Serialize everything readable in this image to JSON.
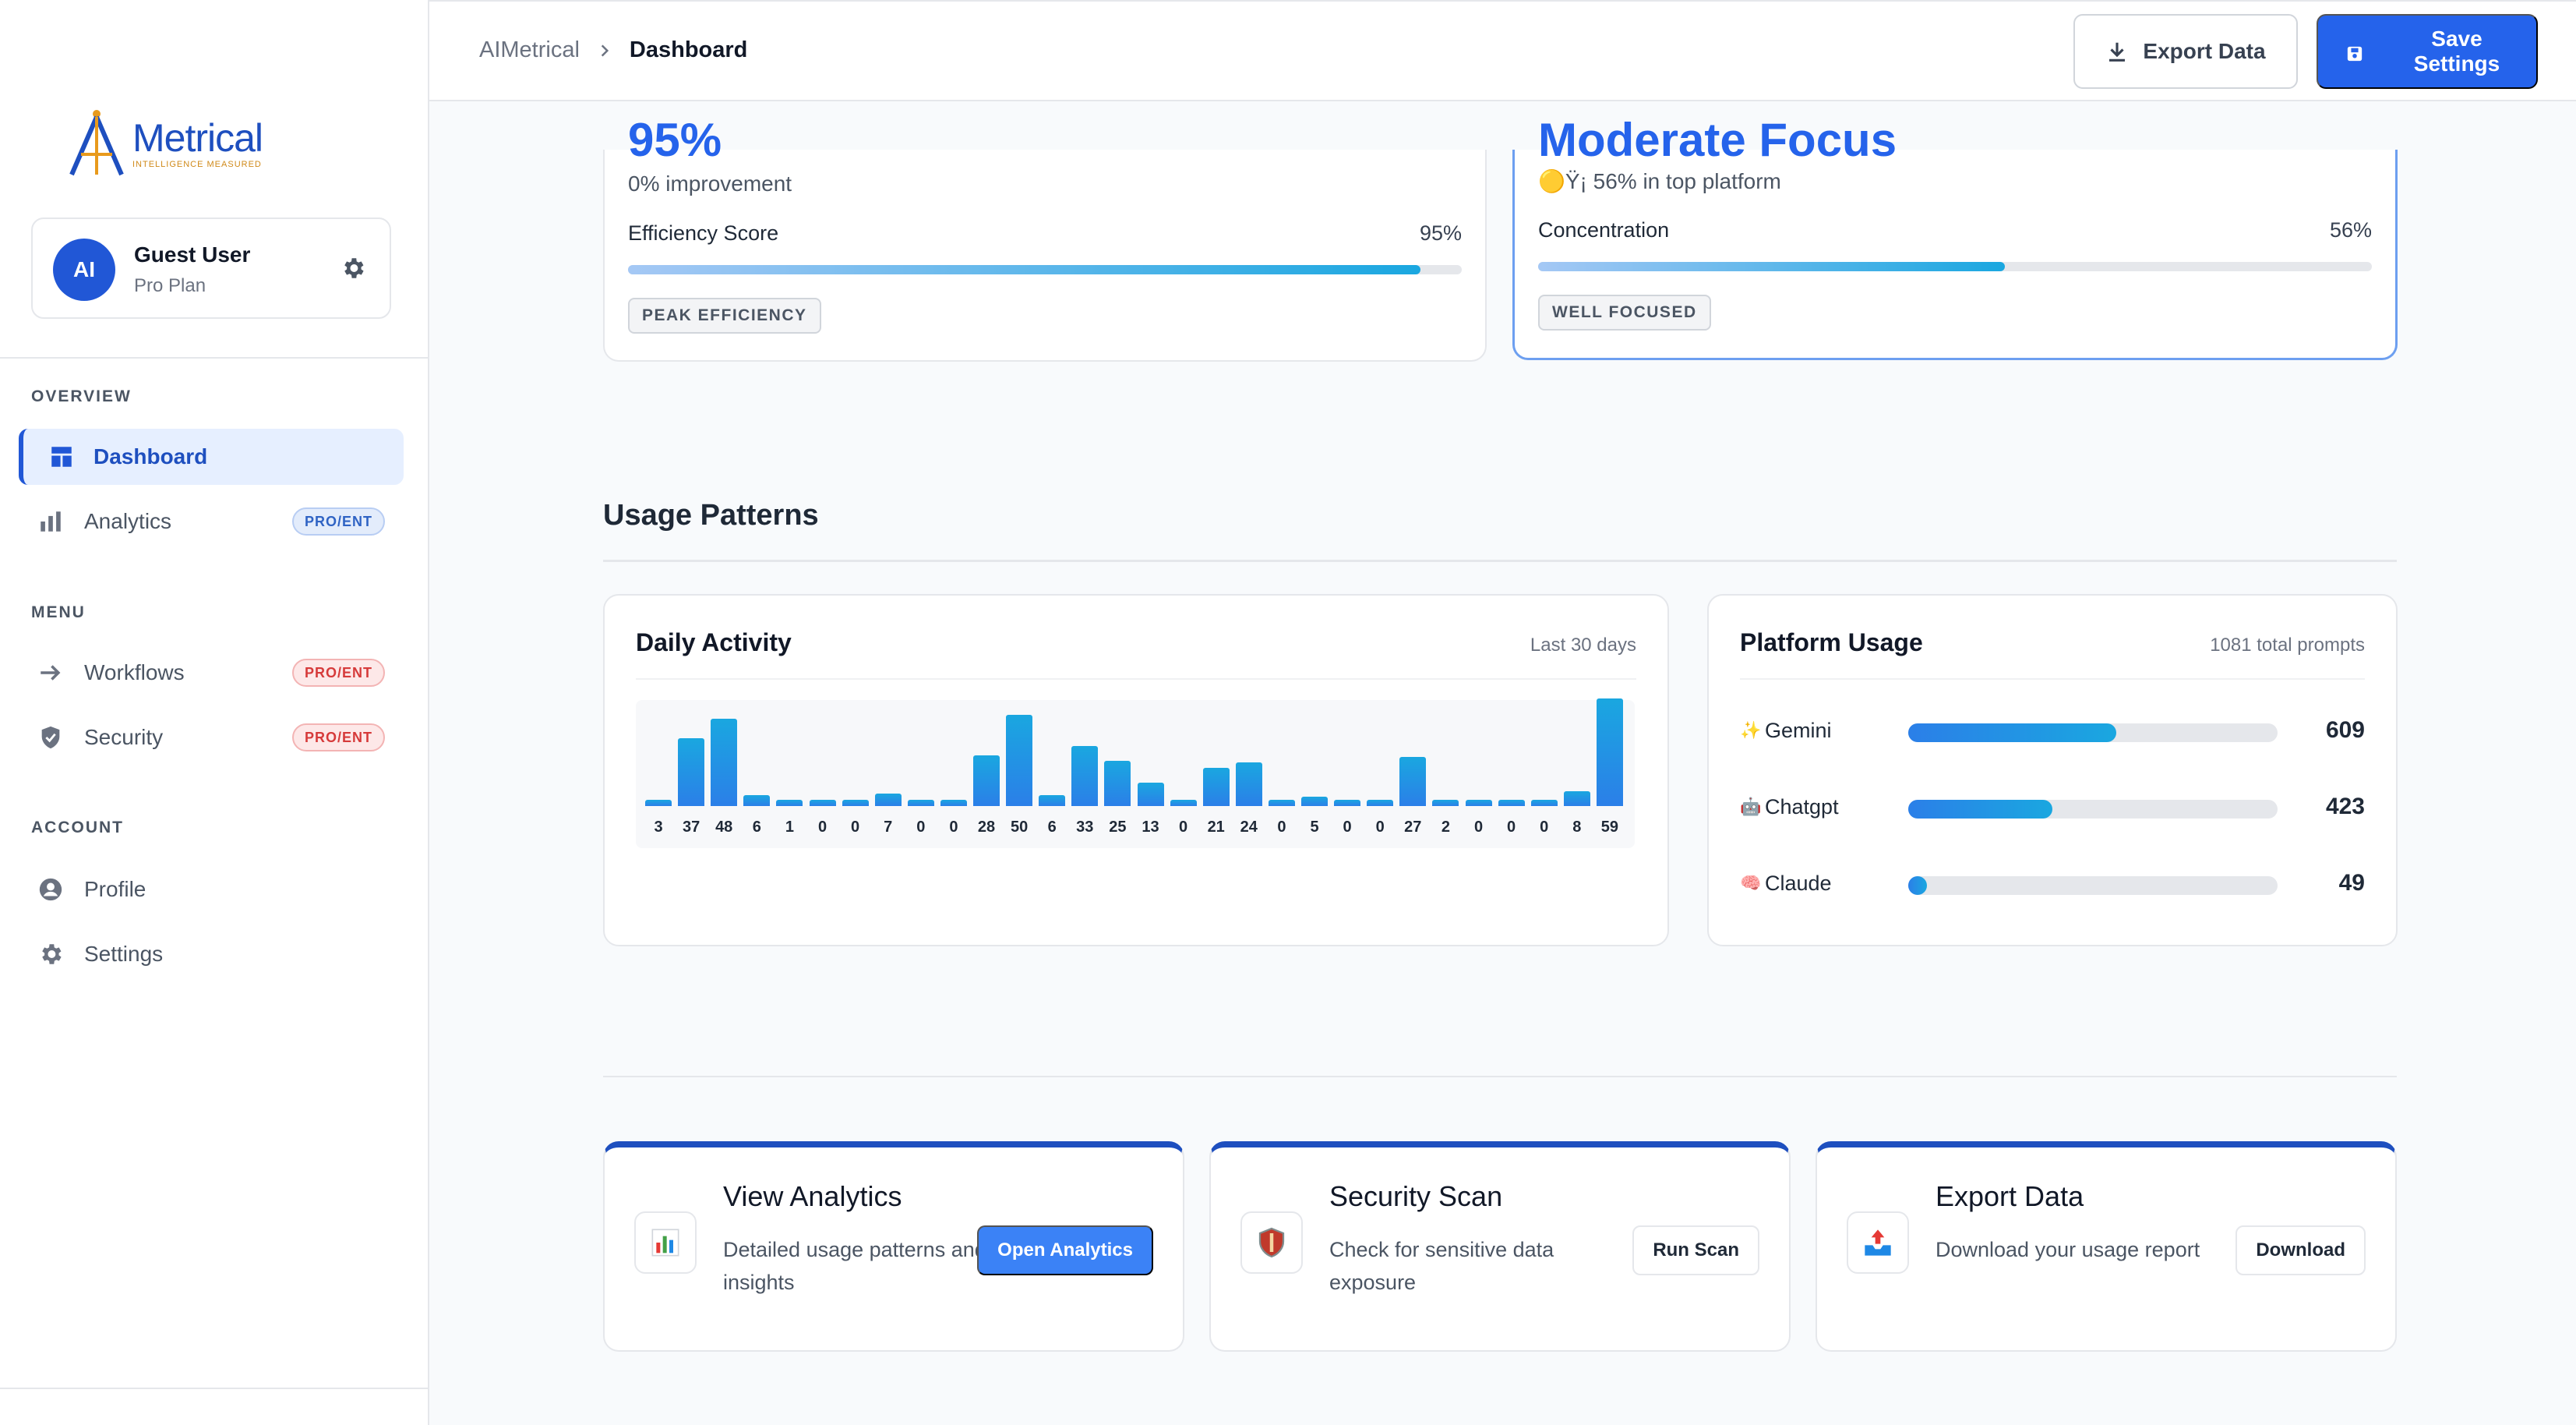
{
  "brand": {
    "name": "Metrical",
    "tagline": "INTELLIGENCE MEASURED"
  },
  "user": {
    "initials": "AI",
    "name": "Guest User",
    "plan": "Pro Plan"
  },
  "sidebar": {
    "sections": [
      {
        "label": "OVERVIEW"
      },
      {
        "label": "MENU"
      },
      {
        "label": "ACCOUNT"
      }
    ],
    "items": [
      {
        "label": "Dashboard",
        "icon": "dashboard-icon",
        "active": true
      },
      {
        "label": "Analytics",
        "icon": "bar-chart-icon",
        "badge": "PRO/ENT"
      },
      {
        "label": "Workflows",
        "icon": "arrow-right-icon",
        "badge": "PRO/ENT"
      },
      {
        "label": "Security",
        "icon": "shield-icon",
        "badge": "PRO/ENT"
      },
      {
        "label": "Profile",
        "icon": "user-circle-icon"
      },
      {
        "label": "Settings",
        "icon": "gear-icon"
      }
    ]
  },
  "header": {
    "breadcrumb_root": "AIMetrical",
    "breadcrumb_current": "Dashboard",
    "export_label": "Export Data",
    "save_label": "Save Settings"
  },
  "metrics": [
    {
      "value_cut": "95%",
      "subtitle": "0% improvement",
      "row_label": "Efficiency Score",
      "row_value": "95%",
      "progress": 0.95,
      "tag": "PEAK EFFICIENCY"
    },
    {
      "value_cut": "Moderate Focus",
      "subtitle": "🟡Ÿ¡ 56% in top platform",
      "row_label": "Concentration",
      "row_value": "56%",
      "progress": 0.56,
      "tag": "WELL FOCUSED"
    }
  ],
  "usage": {
    "title": "Usage Patterns",
    "daily": {
      "title": "Daily Activity",
      "meta": "Last 30 days"
    },
    "platform": {
      "title": "Platform Usage",
      "meta": "1081 total prompts",
      "rows": [
        {
          "icon": "✨",
          "name": "Gemini",
          "count": "609",
          "value": 609
        },
        {
          "icon": "🤖",
          "name": "Chatgpt",
          "count": "423",
          "value": 423
        },
        {
          "icon": "🧠",
          "name": "Claude",
          "count": "49",
          "value": 49
        }
      ]
    }
  },
  "chart_data": {
    "type": "bar",
    "values": [
      3,
      37,
      48,
      6,
      1,
      0,
      0,
      7,
      0,
      0,
      28,
      50,
      6,
      33,
      25,
      13,
      0,
      21,
      24,
      0,
      5,
      0,
      0,
      27,
      2,
      0,
      0,
      0,
      8,
      59
    ],
    "labels": [
      "3",
      "37",
      "48",
      "6",
      "1",
      "0",
      "0",
      "7",
      "0",
      "0",
      "28",
      "50",
      "6",
      "33",
      "25",
      "13",
      "0",
      "21",
      "24",
      "0",
      "5",
      "0",
      "0",
      "27",
      "2",
      "0",
      "0",
      "0",
      "8",
      "59"
    ],
    "title": "Daily Activity",
    "ylim": [
      0,
      59
    ]
  },
  "actions": [
    {
      "title": "View Analytics",
      "desc": "Detailed usage patterns and insights",
      "button": "Open Analytics",
      "icon": "📊",
      "style": "primary"
    },
    {
      "title": "Security Scan",
      "desc": "Check for sensitive data exposure",
      "button": "Run Scan",
      "icon": "🛡️",
      "style": "secondary"
    },
    {
      "title": "Export Data",
      "desc": "Download your usage report",
      "button": "Download",
      "icon": "📤",
      "style": "secondary"
    }
  ],
  "colors": {
    "accent": "#2563eb",
    "brand": "#1e4fbf",
    "pro_badge_red": "#d63a3a",
    "pro_badge_blue": "#2f63c4"
  }
}
